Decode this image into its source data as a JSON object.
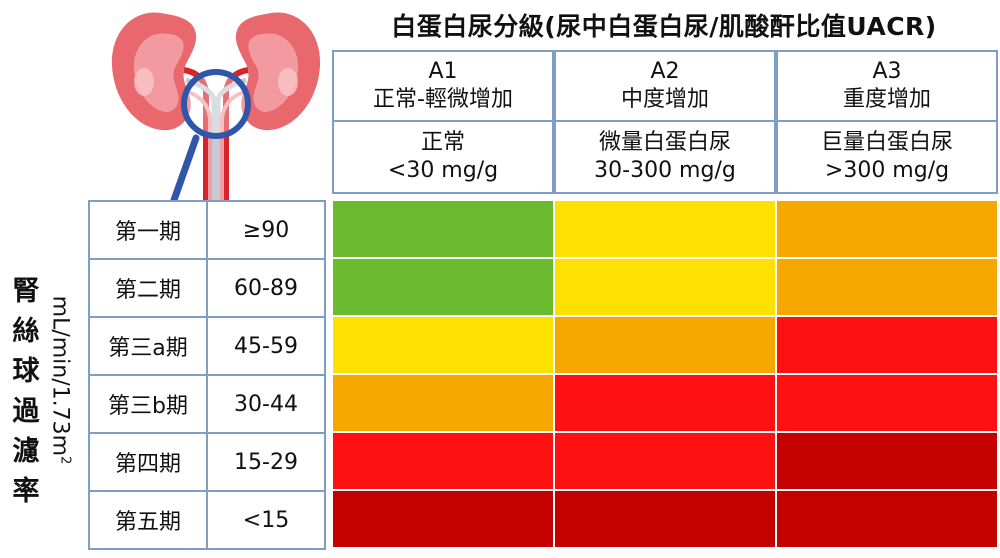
{
  "title": "白蛋白尿分級(尿中白蛋白尿/肌酸酐比值UACR)",
  "albuminuria": [
    {
      "code": "A1",
      "category": "正常-輕微增加",
      "desc": "正常",
      "range": "<30 mg/g"
    },
    {
      "code": "A2",
      "category": "中度增加",
      "desc": "微量白蛋白尿",
      "range": "30-300 mg/g"
    },
    {
      "code": "A3",
      "category": "重度增加",
      "desc": "巨量白蛋白尿",
      "range": ">300 mg/g"
    }
  ],
  "gfr_label_chars": [
    "腎",
    "絲",
    "球",
    "過",
    "濾",
    "率"
  ],
  "gfr_unit": "mL/min/1.73m",
  "gfr_unit_sup": "2",
  "stages": [
    {
      "name": "第一期",
      "range": "≥90"
    },
    {
      "name": "第二期",
      "range": "60-89"
    },
    {
      "name": "第三a期",
      "range": "45-59"
    },
    {
      "name": "第三b期",
      "range": "30-44"
    },
    {
      "name": "第四期",
      "range": "15-29"
    },
    {
      "name": "第五期",
      "range": "<15"
    }
  ],
  "colors": {
    "green": "#6cbb2f",
    "yellow": "#ffe100",
    "orange": "#f7a800",
    "red": "#ff1111",
    "darkred": "#c40000",
    "border": "#7f9ec4"
  },
  "risk_grid": [
    [
      "green",
      "yellow",
      "orange"
    ],
    [
      "green",
      "yellow",
      "orange"
    ],
    [
      "yellow",
      "orange",
      "red"
    ],
    [
      "orange",
      "red",
      "red"
    ],
    [
      "red",
      "red",
      "darkred"
    ],
    [
      "darkred",
      "darkred",
      "darkred"
    ]
  ]
}
